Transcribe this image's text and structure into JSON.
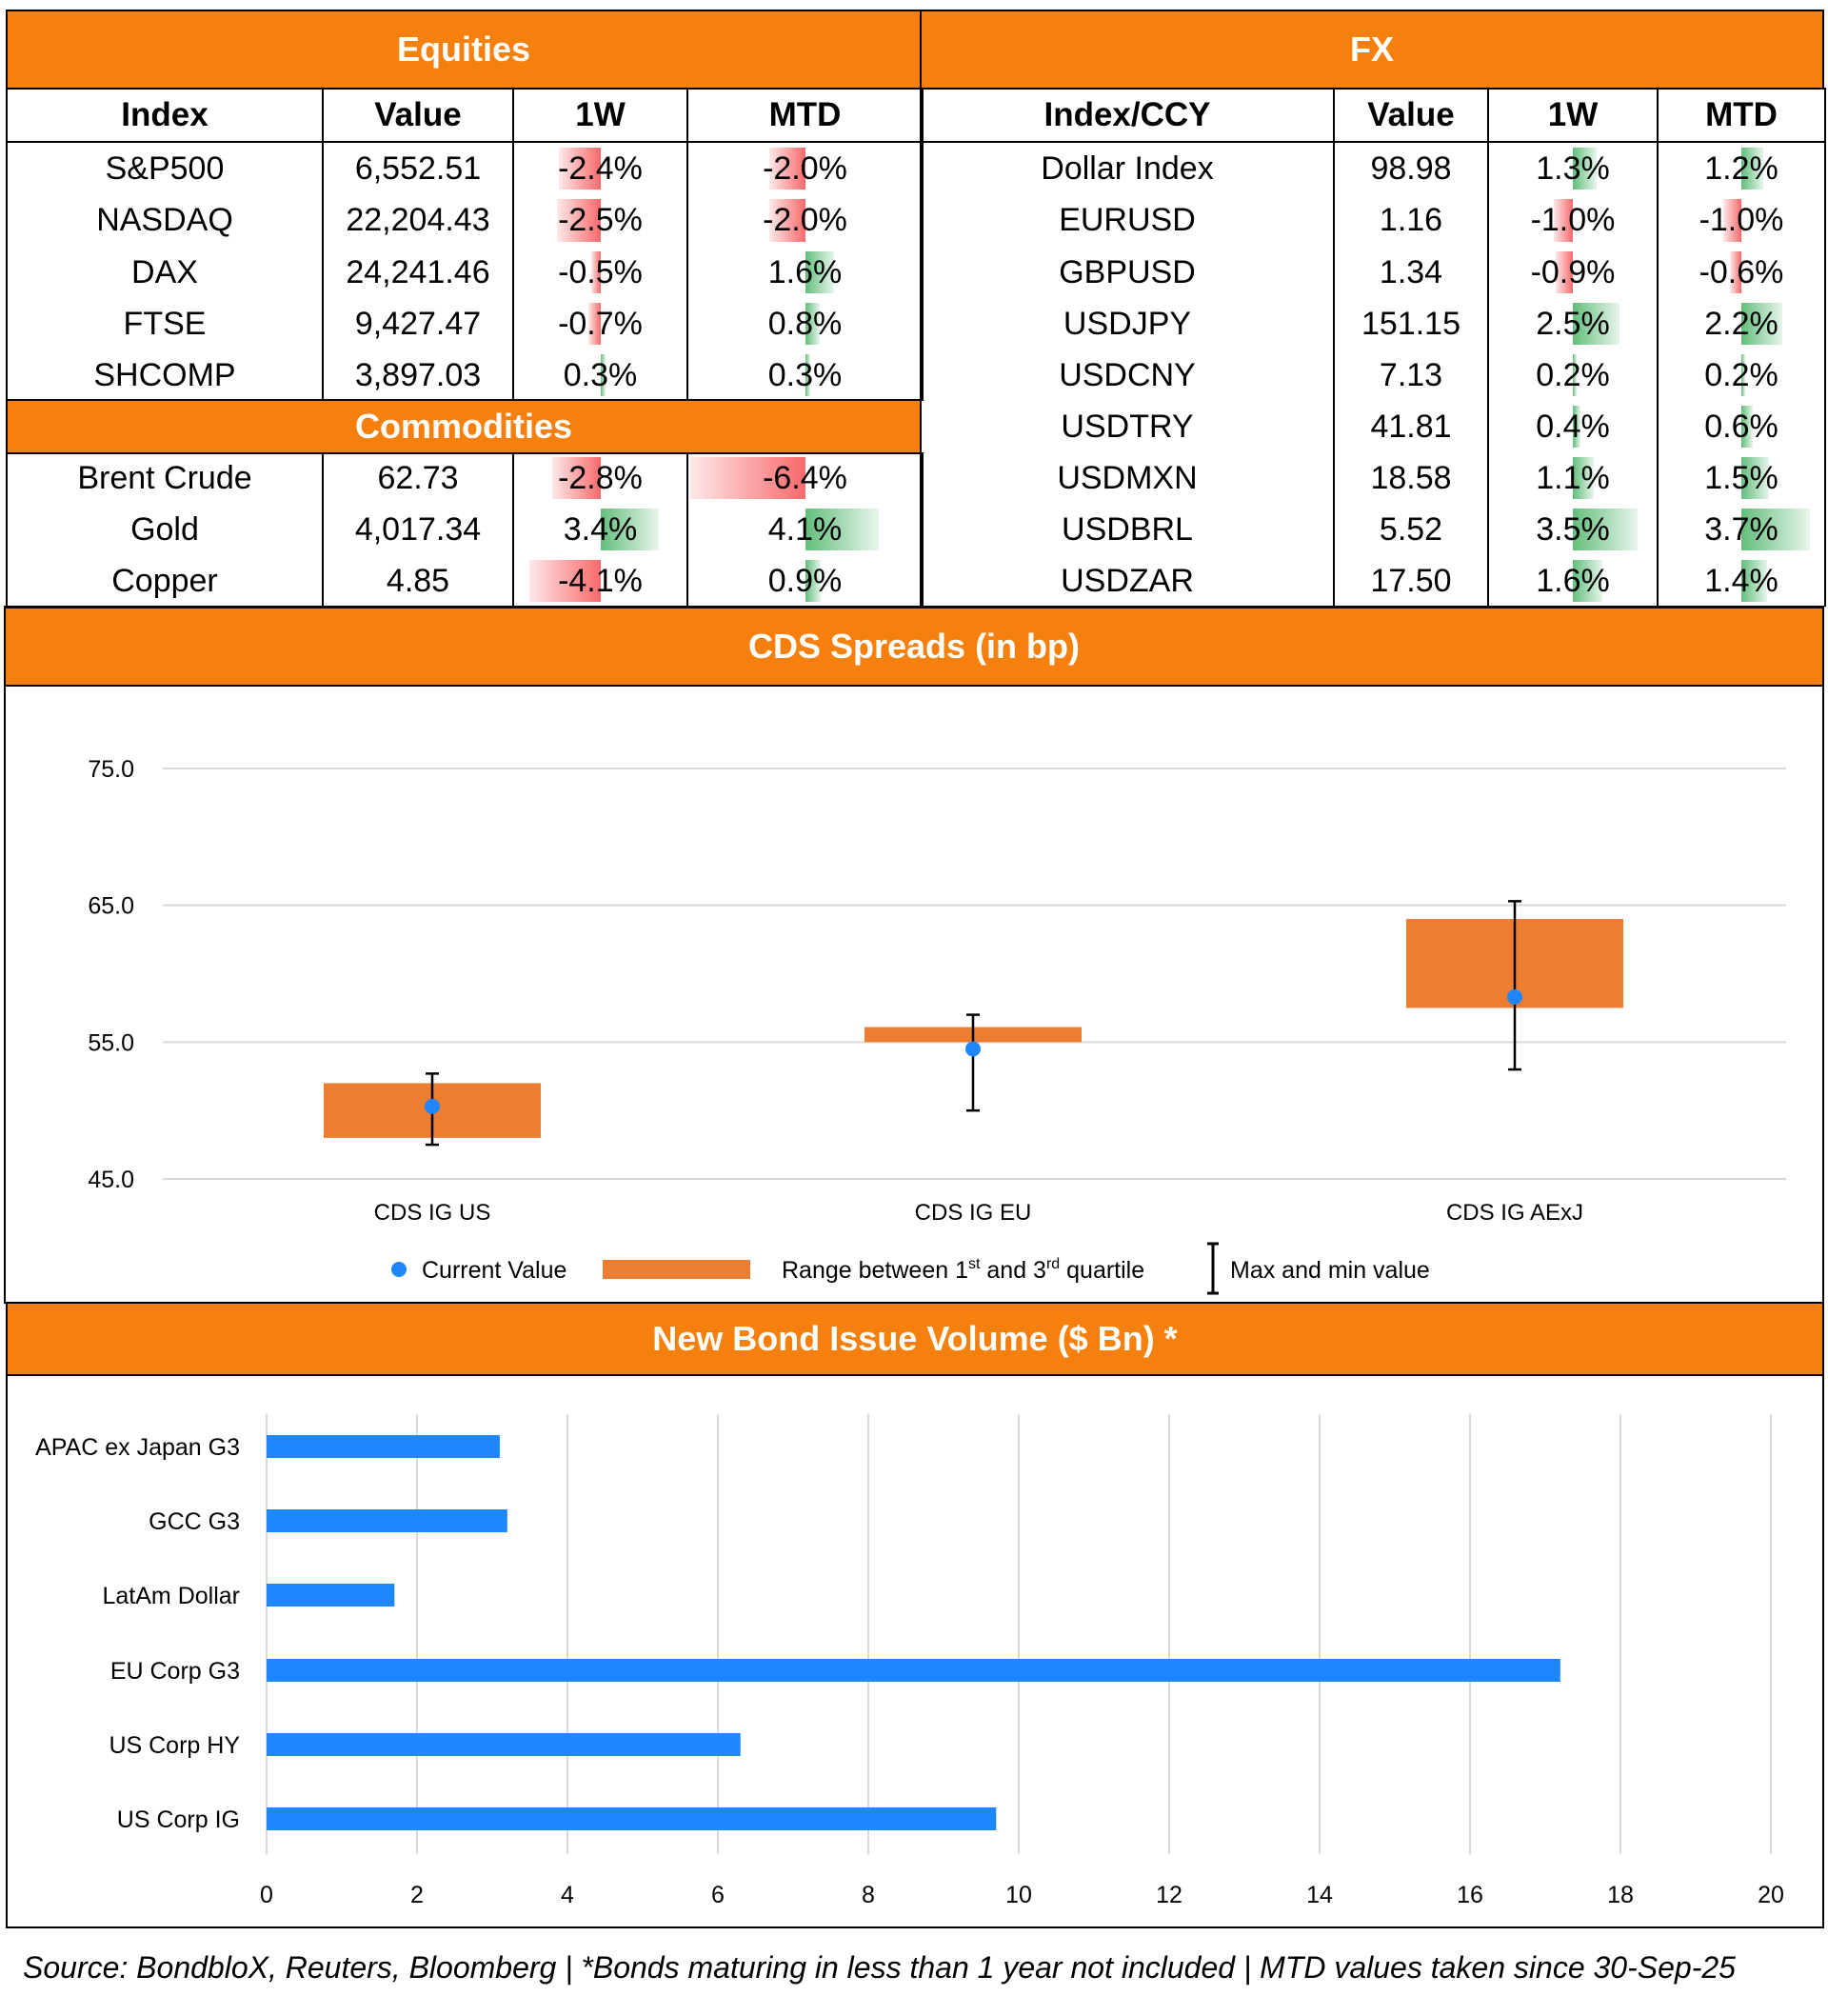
{
  "equities": {
    "title": "Equities",
    "headers": [
      "Index",
      "Value",
      "1W",
      "MTD"
    ],
    "rows": [
      {
        "name": "S&P500",
        "value": "6,552.51",
        "w1": "-2.4%",
        "w1_num": -2.4,
        "mtd": "-2.0%",
        "mtd_num": -2.0
      },
      {
        "name": "NASDAQ",
        "value": "22,204.43",
        "w1": "-2.5%",
        "w1_num": -2.5,
        "mtd": "-2.0%",
        "mtd_num": -2.0
      },
      {
        "name": "DAX",
        "value": "24,241.46",
        "w1": "-0.5%",
        "w1_num": -0.5,
        "mtd": "1.6%",
        "mtd_num": 1.6
      },
      {
        "name": "FTSE",
        "value": "9,427.47",
        "w1": "-0.7%",
        "w1_num": -0.7,
        "mtd": "0.8%",
        "mtd_num": 0.8
      },
      {
        "name": "SHCOMP",
        "value": "3,897.03",
        "w1": "0.3%",
        "w1_num": 0.3,
        "mtd": "0.3%",
        "mtd_num": 0.3
      }
    ]
  },
  "commodities": {
    "title": "Commodities",
    "rows": [
      {
        "name": "Brent Crude",
        "value": "62.73",
        "w1": "-2.8%",
        "w1_num": -2.8,
        "mtd": "-6.4%",
        "mtd_num": -6.4
      },
      {
        "name": "Gold",
        "value": "4,017.34",
        "w1": "3.4%",
        "w1_num": 3.4,
        "mtd": "4.1%",
        "mtd_num": 4.1
      },
      {
        "name": "Copper",
        "value": "4.85",
        "w1": "-4.1%",
        "w1_num": -4.1,
        "mtd": "0.9%",
        "mtd_num": 0.9
      }
    ]
  },
  "fx": {
    "title": "FX",
    "headers": [
      "Index/CCY",
      "Value",
      "1W",
      "MTD"
    ],
    "rows": [
      {
        "name": "Dollar Index",
        "value": "98.98",
        "w1": "1.3%",
        "w1_num": 1.3,
        "mtd": "1.2%",
        "mtd_num": 1.2
      },
      {
        "name": "EURUSD",
        "value": "1.16",
        "w1": "-1.0%",
        "w1_num": -1.0,
        "mtd": "-1.0%",
        "mtd_num": -1.0
      },
      {
        "name": "GBPUSD",
        "value": "1.34",
        "w1": "-0.9%",
        "w1_num": -0.9,
        "mtd": "-0.6%",
        "mtd_num": -0.6
      },
      {
        "name": "USDJPY",
        "value": "151.15",
        "w1": "2.5%",
        "w1_num": 2.5,
        "mtd": "2.2%",
        "mtd_num": 2.2
      },
      {
        "name": "USDCNY",
        "value": "7.13",
        "w1": "0.2%",
        "w1_num": 0.2,
        "mtd": "0.2%",
        "mtd_num": 0.2
      },
      {
        "name": "USDTRY",
        "value": "41.81",
        "w1": "0.4%",
        "w1_num": 0.4,
        "mtd": "0.6%",
        "mtd_num": 0.6
      },
      {
        "name": "USDMXN",
        "value": "18.58",
        "w1": "1.1%",
        "w1_num": 1.1,
        "mtd": "1.5%",
        "mtd_num": 1.5
      },
      {
        "name": "USDBRL",
        "value": "5.52",
        "w1": "3.5%",
        "w1_num": 3.5,
        "mtd": "3.7%",
        "mtd_num": 3.7
      },
      {
        "name": "USDZAR",
        "value": "17.50",
        "w1": "1.6%",
        "w1_num": 1.6,
        "mtd": "1.4%",
        "mtd_num": 1.4
      }
    ]
  },
  "colors": {
    "orange": "#f5800d",
    "box_orange": "#ed7d31",
    "blue": "#1e86ff",
    "neg": "#f8696b",
    "pos": "#63be7b"
  },
  "chart_data": [
    {
      "type": "box",
      "title": "CDS Spreads (in bp)",
      "categories": [
        "CDS IG US",
        "CDS IG EU",
        "CDS IG AExJ"
      ],
      "ylim": [
        45.0,
        75.0
      ],
      "yticks": [
        "45.0",
        "55.0",
        "65.0",
        "75.0"
      ],
      "ytick_values": [
        45,
        55,
        65,
        75
      ],
      "series": [
        {
          "category": "CDS IG US",
          "min": 47.5,
          "q1": 48.0,
          "q3": 52.0,
          "max": 52.7,
          "current": 50.3
        },
        {
          "category": "CDS IG EU",
          "min": 50.0,
          "q1": 55.0,
          "q3": 56.1,
          "max": 57.0,
          "current": 54.5
        },
        {
          "category": "CDS IG AExJ",
          "min": 53.0,
          "q1": 57.5,
          "q3": 64.0,
          "max": 65.3,
          "current": 58.3
        }
      ],
      "legend": {
        "current": "Current Value",
        "range_a": "Range between 1",
        "range_sup1": "st",
        "range_b": " and 3",
        "range_sup2": "rd",
        "range_c": " quartile",
        "maxmin": "Max and min value"
      }
    },
    {
      "type": "bar",
      "title": "New Bond Issue Volume ($ Bn) *",
      "categories": [
        "APAC ex Japan G3",
        "GCC G3",
        "LatAm Dollar",
        "EU Corp G3",
        "US Corp HY",
        "US Corp IG"
      ],
      "values": [
        3.1,
        3.2,
        1.7,
        17.2,
        6.3,
        9.7
      ],
      "xlim": [
        0,
        20
      ],
      "xticks": [
        "0",
        "2",
        "4",
        "6",
        "8",
        "10",
        "12",
        "14",
        "16",
        "18",
        "20"
      ],
      "xtick_values": [
        0,
        2,
        4,
        6,
        8,
        10,
        12,
        14,
        16,
        18,
        20
      ]
    }
  ],
  "source": "Source: BondbloX, Reuters, Bloomberg | *Bonds maturing in less than 1 year not included | MTD values taken since 30-Sep-25"
}
